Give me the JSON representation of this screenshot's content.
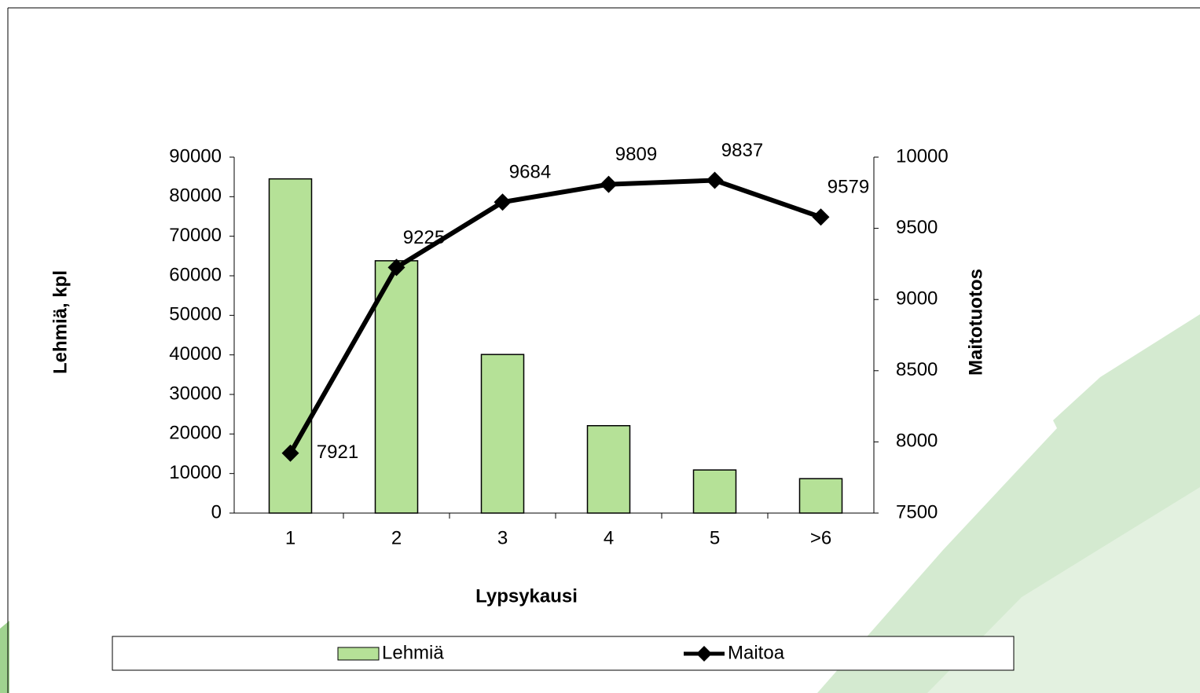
{
  "chart_data": {
    "type": "bar_line",
    "xlabel": "Lypsykausi",
    "ylabel": "Lehmiä, kpl",
    "y2label": "Maitotuotos",
    "categories": [
      "1",
      "2",
      "3",
      "4",
      "5",
      ">6"
    ],
    "series": [
      {
        "name": "Lehmiä",
        "type": "bar",
        "color": "#b5e197",
        "values": [
          84500,
          63800,
          40100,
          22100,
          10900,
          8700
        ]
      },
      {
        "name": "Maitoa",
        "type": "line",
        "axis": "y2",
        "color": "#000000",
        "values": [
          7921,
          9225,
          9684,
          9809,
          9837,
          9579
        ]
      }
    ],
    "ylim": [
      0,
      90000
    ],
    "yticks": [
      0,
      10000,
      20000,
      30000,
      40000,
      50000,
      60000,
      70000,
      80000,
      90000
    ],
    "y2lim": [
      7500,
      10000
    ],
    "y2ticks": [
      7500,
      8000,
      8500,
      9000,
      9500,
      10000
    ],
    "legend": "bottom"
  }
}
